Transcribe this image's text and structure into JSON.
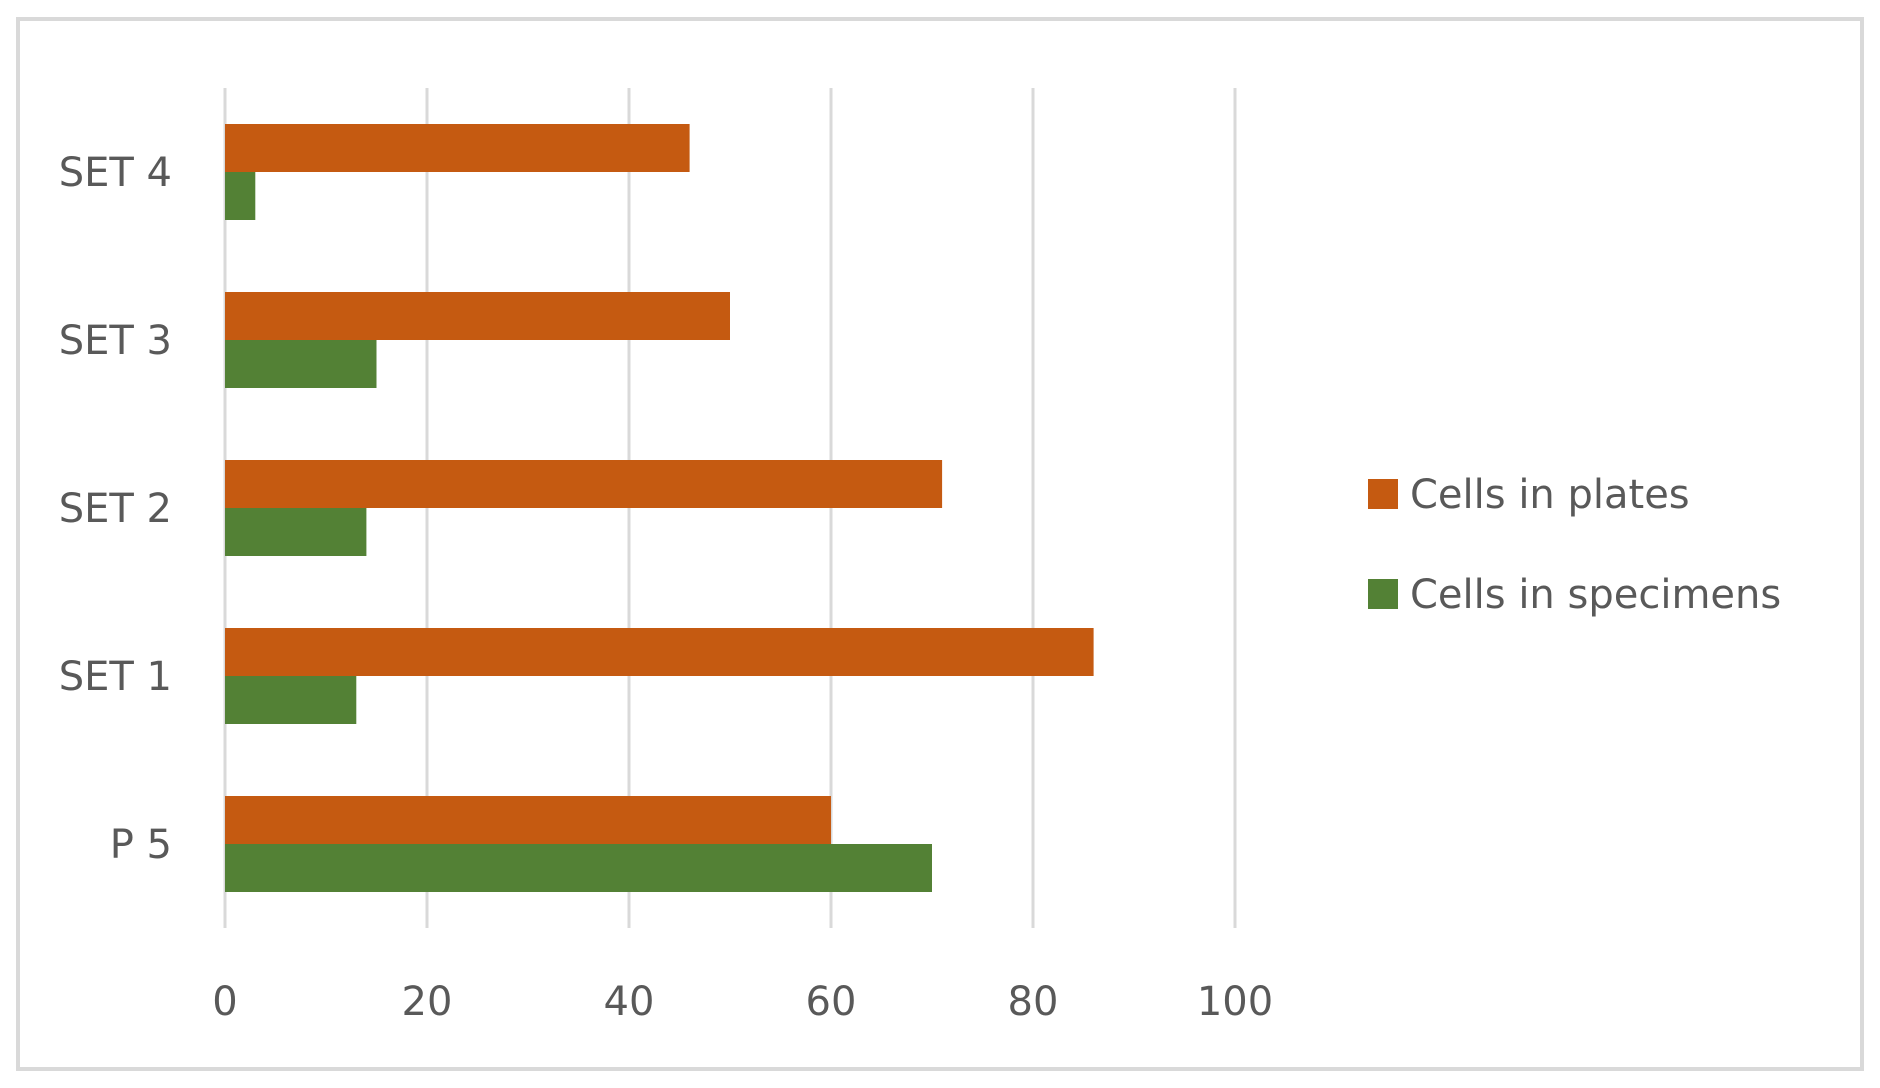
{
  "chart_data": {
    "type": "bar",
    "orientation": "horizontal",
    "categories": [
      "P 5",
      "SET 1",
      "SET 2",
      "SET 3",
      "SET 4"
    ],
    "series": [
      {
        "name": "Cells in plates",
        "color": "#C55A11",
        "values": [
          60,
          86,
          71,
          50,
          46
        ]
      },
      {
        "name": "Cells in specimens",
        "color": "#538135",
        "values": [
          70,
          13,
          14,
          15,
          3
        ]
      }
    ],
    "xlim": [
      0,
      100
    ],
    "xticks": [
      0,
      20,
      40,
      60,
      80,
      100
    ],
    "title": "",
    "xlabel": "",
    "ylabel": "",
    "grid": "vertical",
    "legend_position": "right"
  },
  "colors": {
    "grid": "#D9D9D9",
    "border": "#D9D9D9",
    "text": "#595959"
  }
}
